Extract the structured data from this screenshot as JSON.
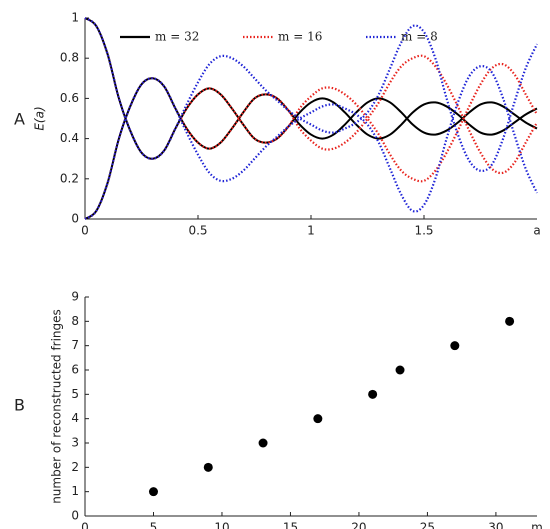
{
  "chart_data": [
    {
      "type": "line",
      "panel_label": "A",
      "ylabel": "E(a)",
      "xlabel": "a",
      "xlim": [
        0,
        2
      ],
      "xticks": [
        0,
        0.5,
        1,
        1.5
      ],
      "ylim": [
        0,
        1
      ],
      "yticks": [
        0,
        0.2,
        0.4,
        0.6,
        0.8,
        1
      ],
      "x": [
        0,
        0.05,
        0.1,
        0.15,
        0.2,
        0.25,
        0.3,
        0.35,
        0.4,
        0.45,
        0.5,
        0.55,
        0.6,
        0.65,
        0.7,
        0.75,
        0.8,
        0.85,
        0.9,
        0.95,
        1,
        1.05,
        1.1,
        1.15,
        1.2,
        1.25,
        1.3,
        1.35,
        1.4,
        1.45,
        1.5,
        1.55,
        1.6,
        1.65,
        1.7,
        1.75,
        1.8,
        1.85,
        1.9,
        1.95,
        2
      ],
      "legend": "top",
      "series": [
        {
          "name": "m = 32",
          "color": "#000000",
          "dashed": false,
          "values": [
            1,
            0.96,
            0.82,
            0.6,
            0.44,
            0.33,
            0.3,
            0.34,
            0.45,
            0.55,
            0.62,
            0.65,
            0.62,
            0.55,
            0.47,
            0.4,
            0.38,
            0.4,
            0.46,
            0.53,
            0.58,
            0.6,
            0.58,
            0.53,
            0.47,
            0.42,
            0.4,
            0.42,
            0.47,
            0.53,
            0.57,
            0.58,
            0.56,
            0.52,
            0.47,
            0.43,
            0.42,
            0.44,
            0.48,
            0.52,
            0.55
          ]
        },
        {
          "color": "#000000",
          "dashed": false,
          "values": [
            0,
            0.04,
            0.18,
            0.4,
            0.56,
            0.67,
            0.7,
            0.66,
            0.55,
            0.45,
            0.38,
            0.35,
            0.38,
            0.45,
            0.53,
            0.6,
            0.62,
            0.6,
            0.54,
            0.47,
            0.42,
            0.4,
            0.42,
            0.47,
            0.53,
            0.58,
            0.6,
            0.58,
            0.53,
            0.47,
            0.43,
            0.42,
            0.44,
            0.48,
            0.53,
            0.57,
            0.58,
            0.56,
            0.52,
            0.48,
            0.45
          ]
        },
        {
          "name": "m = 16",
          "color": "#e8231d",
          "dashed": true,
          "values": [
            1,
            0.96,
            0.82,
            0.6,
            0.44,
            0.33,
            0.3,
            0.34,
            0.45,
            0.55,
            0.62,
            0.65,
            0.62,
            0.55,
            0.47,
            0.4,
            0.38,
            0.4,
            0.46,
            0.55,
            0.61,
            0.65,
            0.65,
            0.62,
            0.57,
            0.5,
            0.42,
            0.32,
            0.24,
            0.2,
            0.19,
            0.24,
            0.33,
            0.44,
            0.56,
            0.67,
            0.75,
            0.77,
            0.72,
            0.62,
            0.52
          ]
        },
        {
          "color": "#e8231d",
          "dashed": true,
          "values": [
            0,
            0.04,
            0.18,
            0.4,
            0.56,
            0.67,
            0.7,
            0.66,
            0.55,
            0.45,
            0.38,
            0.35,
            0.38,
            0.45,
            0.53,
            0.6,
            0.62,
            0.6,
            0.54,
            0.45,
            0.39,
            0.35,
            0.35,
            0.38,
            0.43,
            0.5,
            0.58,
            0.68,
            0.76,
            0.8,
            0.81,
            0.76,
            0.67,
            0.56,
            0.44,
            0.33,
            0.25,
            0.23,
            0.28,
            0.38,
            0.48
          ]
        },
        {
          "name": "m = 8",
          "color": "#1f24d6",
          "dashed": true,
          "values": [
            1,
            0.96,
            0.82,
            0.6,
            0.44,
            0.33,
            0.3,
            0.34,
            0.45,
            0.57,
            0.68,
            0.77,
            0.81,
            0.8,
            0.76,
            0.7,
            0.64,
            0.59,
            0.54,
            0.5,
            0.47,
            0.44,
            0.43,
            0.45,
            0.48,
            0.53,
            0.62,
            0.75,
            0.88,
            0.96,
            0.93,
            0.8,
            0.6,
            0.42,
            0.29,
            0.24,
            0.27,
            0.4,
            0.58,
            0.75,
            0.87
          ]
        },
        {
          "color": "#1f24d6",
          "dashed": true,
          "values": [
            0,
            0.04,
            0.18,
            0.4,
            0.56,
            0.67,
            0.7,
            0.66,
            0.55,
            0.43,
            0.32,
            0.23,
            0.19,
            0.2,
            0.24,
            0.3,
            0.36,
            0.41,
            0.46,
            0.5,
            0.53,
            0.56,
            0.57,
            0.55,
            0.52,
            0.47,
            0.38,
            0.25,
            0.12,
            0.04,
            0.07,
            0.2,
            0.4,
            0.58,
            0.71,
            0.76,
            0.73,
            0.6,
            0.42,
            0.25,
            0.13
          ]
        }
      ]
    },
    {
      "type": "scatter",
      "panel_label": "B",
      "ylabel": "number of reconstructed fringes",
      "xlabel": "m",
      "xlim": [
        0,
        33
      ],
      "xticks": [
        0,
        5,
        10,
        15,
        20,
        25,
        30
      ],
      "ylim": [
        0,
        9
      ],
      "yticks": [
        0,
        1,
        2,
        3,
        4,
        5,
        6,
        7,
        8,
        9
      ],
      "color": "#000000",
      "x": [
        5,
        9,
        13,
        17,
        21,
        23,
        27,
        31
      ],
      "values": [
        1,
        2,
        3,
        4,
        5,
        6,
        7,
        8
      ]
    }
  ]
}
